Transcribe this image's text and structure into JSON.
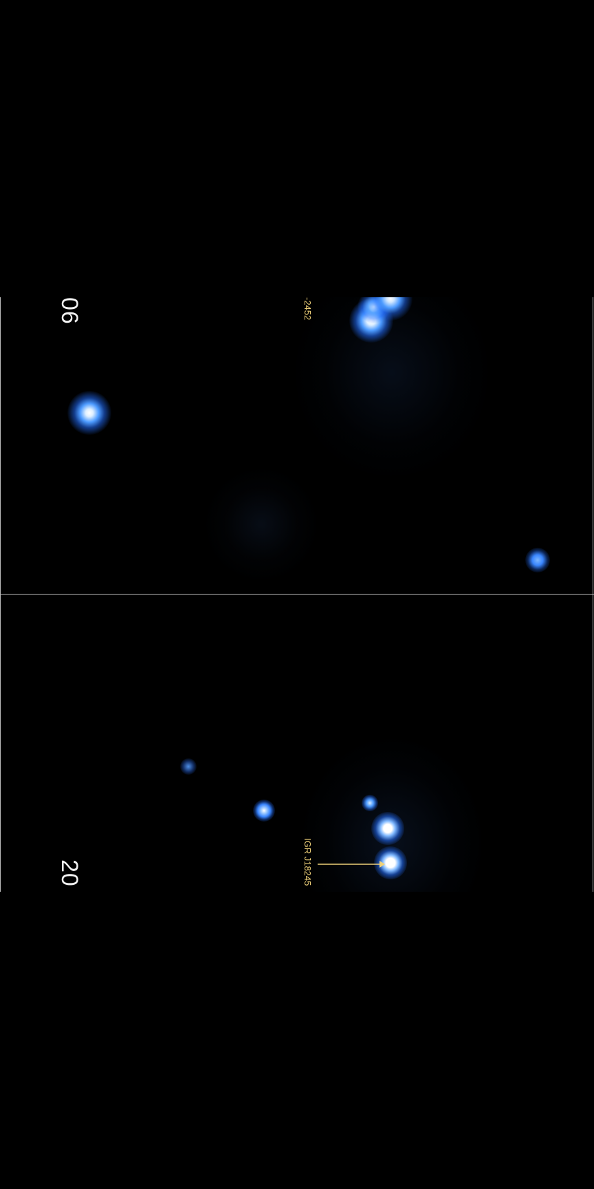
{
  "image": {
    "panels": [
      {
        "id": "top",
        "epoch_label": "06",
        "source_label": "-2452"
      },
      {
        "id": "bottom",
        "epoch_label": "20",
        "source_label": "IGR J18245"
      }
    ],
    "colors": {
      "background": "#000000",
      "source_core": "#ffffff",
      "source_glow": "#2f7cff",
      "label": "#f0d27a",
      "epoch_text": "#f2f2f2",
      "frame": "#bdbdbd"
    }
  }
}
